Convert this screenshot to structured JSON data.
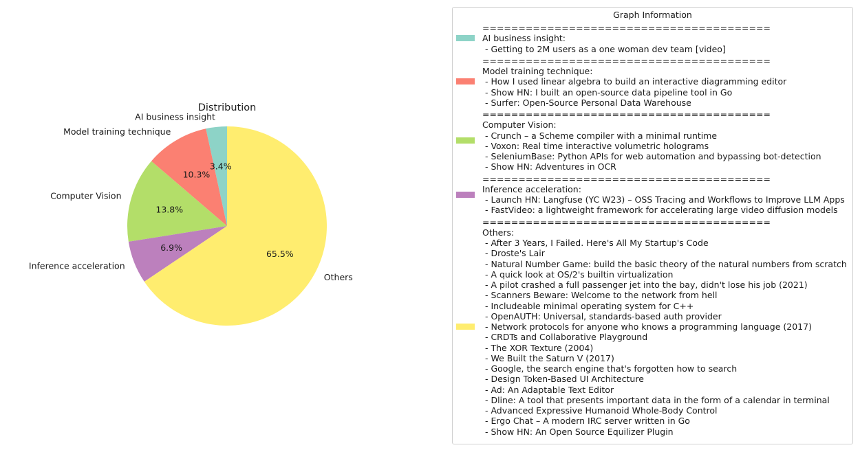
{
  "chart_data": {
    "type": "pie",
    "title": "Distribution",
    "slices": [
      {
        "label": "AI business insight",
        "value": 3.4,
        "pct_label": "3.4%",
        "color": "#8dd3c7"
      },
      {
        "label": "Model training technique",
        "value": 10.3,
        "pct_label": "10.3%",
        "color": "#fb8072"
      },
      {
        "label": "Computer Vision",
        "value": 13.8,
        "pct_label": "13.8%",
        "color": "#b3de69"
      },
      {
        "label": "Inference acceleration",
        "value": 6.9,
        "pct_label": "6.9%",
        "color": "#bc80bd"
      },
      {
        "label": "Others",
        "value": 65.5,
        "pct_label": "65.5%",
        "color": "#ffed6f"
      }
    ],
    "start_angle": 90,
    "direction": "counterclockwise"
  },
  "legend": {
    "title": "Graph Information",
    "separator": "========================================",
    "entries": [
      {
        "heading": "AI business insight:",
        "color": "#8dd3c7",
        "items": [
          "Getting to 2M users as a one woman dev team [video]"
        ]
      },
      {
        "heading": "Model training technique:",
        "color": "#fb8072",
        "items": [
          "How I used linear algebra to build an interactive diagramming editor",
          "Show HN: I built an open-source data pipeline tool in Go",
          "Surfer: Open-Source Personal Data Warehouse"
        ]
      },
      {
        "heading": "Computer Vision:",
        "color": "#b3de69",
        "items": [
          "Crunch – a Scheme compiler with a minimal runtime",
          "Voxon: Real time interactive volumetric holograms",
          "SeleniumBase: Python APIs for web automation and bypassing bot-detection",
          "Show HN: Adventures in OCR"
        ]
      },
      {
        "heading": "Inference acceleration:",
        "color": "#bc80bd",
        "items": [
          "Launch HN: Langfuse (YC W23) – OSS Tracing and Workflows to Improve LLM Apps",
          "FastVideo: a lightweight framework for accelerating large video diffusion models"
        ]
      },
      {
        "heading": "Others:",
        "color": "#ffed6f",
        "items": [
          "After 3 Years, I Failed. Here's All My Startup's Code",
          "Droste's Lair",
          "Natural Number Game: build the basic theory of the natural numbers from scratch",
          "A quick look at OS/2's builtin virtualization",
          "A pilot crashed a full passenger jet into the bay, didn't lose his job (2021)",
          "Scanners Beware: Welcome to the network from hell",
          "Includeable minimal operating system for C++",
          "OpenAUTH: Universal, standards-based auth provider",
          "Network protocols for anyone who knows a programming language (2017)",
          "CRDTs and Collaborative Playground",
          "The XOR Texture (2004)",
          "We Built the Saturn V (2017)",
          "Google, the search engine that's forgotten how to search",
          "Design Token-Based UI Architecture",
          "Ad: An Adaptable Text Editor",
          "Dline: A tool that presents important data in the form of a calendar in terminal",
          "Advanced Expressive Humanoid Whole-Body Control",
          "Ergo Chat – A modern IRC server written in Go",
          "Show HN: An Open Source Equilizer Plugin"
        ]
      }
    ]
  }
}
